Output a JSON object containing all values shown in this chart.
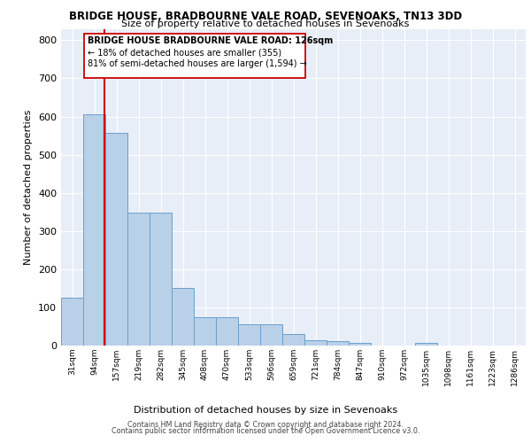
{
  "title_line1": "BRIDGE HOUSE, BRADBOURNE VALE ROAD, SEVENOAKS, TN13 3DD",
  "title_line2": "Size of property relative to detached houses in Sevenoaks",
  "xlabel": "Distribution of detached houses by size in Sevenoaks",
  "ylabel": "Number of detached properties",
  "bins": [
    "31sqm",
    "94sqm",
    "157sqm",
    "219sqm",
    "282sqm",
    "345sqm",
    "408sqm",
    "470sqm",
    "533sqm",
    "596sqm",
    "659sqm",
    "721sqm",
    "784sqm",
    "847sqm",
    "910sqm",
    "972sqm",
    "1035sqm",
    "1098sqm",
    "1161sqm",
    "1223sqm",
    "1286sqm"
  ],
  "values": [
    125,
    605,
    558,
    348,
    348,
    150,
    75,
    75,
    55,
    55,
    30,
    13,
    12,
    8,
    0,
    0,
    8,
    0,
    0,
    0,
    0
  ],
  "bar_color": "#b8d0e8",
  "bar_edge_color": "#6aa0cc",
  "annotation_text_lines": [
    "BRIDGE HOUSE BRADBOURNE VALE ROAD: 126sqm",
    "← 18% of detached houses are smaller (355)",
    "81% of semi-detached houses are larger (1,594) →"
  ],
  "vline_color": "#cc0000",
  "footer_line1": "Contains HM Land Registry data © Crown copyright and database right 2024.",
  "footer_line2": "Contains public sector information licensed under the Open Government Licence v3.0.",
  "background_color": "#e8eef8",
  "ylim": [
    0,
    830
  ],
  "yticks": [
    0,
    100,
    200,
    300,
    400,
    500,
    600,
    700,
    800
  ]
}
